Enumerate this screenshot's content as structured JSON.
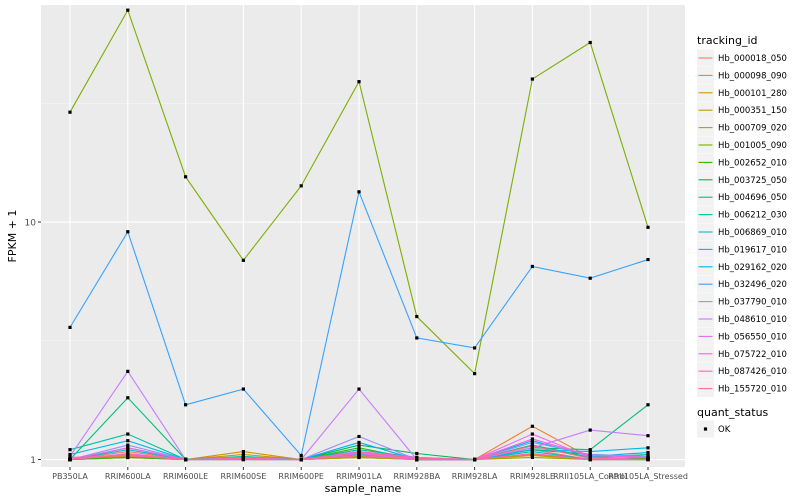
{
  "chart_data": {
    "type": "line",
    "xlabel": "sample_name",
    "ylabel": "FPKM + 1",
    "y_scale": "log10",
    "ylim": [
      0.93,
      82
    ],
    "y_ticks": [
      1,
      10
    ],
    "y_tick_labels": [
      "1",
      "10"
    ],
    "grid": true,
    "legend_position": "right",
    "categories": [
      "PB350LA",
      "RRIM600LA",
      "RRIM600LE",
      "RRIM600SE",
      "RRIM600PE",
      "RRIM901LA",
      "RRIM928BA",
      "RRIM928LA",
      "RRIM928LE",
      "RRII105LA_Control",
      "RRII105LA_Stressed"
    ],
    "category_labels": [
      "PB350LA",
      "RRIM600LA",
      "RRIM600LE",
      "RRIM600SE",
      "RRIM600PE",
      "RRIM901LA",
      "RRIM928BA",
      "RRIM928LA",
      "RRIM928LE",
      "RRII105LA_Control",
      "RRII105LA_Stressed"
    ],
    "legend_title": "tracking_id",
    "series": [
      {
        "name": "Hb_000018_050",
        "color": "#F8766D",
        "values": [
          1.0,
          1.08,
          1.0,
          1.02,
          1.0,
          1.05,
          1.0,
          1.0,
          1.1,
          1.0,
          1.02
        ]
      },
      {
        "name": "Hb_000098_090",
        "color": "#EA8331",
        "values": [
          1.0,
          1.03,
          1.0,
          1.01,
          1.0,
          1.03,
          1.0,
          1.0,
          1.38,
          1.02,
          1.01
        ]
      },
      {
        "name": "Hb_000101_280",
        "color": "#D89000",
        "values": [
          1.0,
          1.02,
          1.0,
          1.08,
          1.0,
          1.02,
          1.0,
          1.0,
          1.05,
          1.0,
          1.0
        ]
      },
      {
        "name": "Hb_000351_150",
        "color": "#C09B00",
        "values": [
          1.0,
          1.04,
          1.0,
          1.05,
          1.0,
          1.03,
          1.0,
          1.0,
          1.04,
          1.0,
          1.01
        ]
      },
      {
        "name": "Hb_000709_020",
        "color": "#A3A500",
        "values": [
          1.0,
          1.02,
          1.0,
          1.0,
          1.0,
          1.02,
          1.0,
          1.0,
          1.02,
          1.0,
          1.0
        ]
      },
      {
        "name": "Hb_001005_090",
        "color": "#7CAE00",
        "values": [
          29.0,
          78.0,
          15.5,
          6.9,
          14.2,
          39.0,
          4.0,
          2.3,
          40.0,
          57.0,
          9.5
        ]
      },
      {
        "name": "Hb_002652_010",
        "color": "#39B600",
        "values": [
          1.0,
          1.02,
          1.0,
          1.01,
          1.0,
          1.12,
          1.0,
          1.0,
          1.15,
          1.02,
          1.01
        ]
      },
      {
        "name": "Hb_003725_050",
        "color": "#00BB4E",
        "values": [
          1.0,
          1.05,
          1.0,
          1.02,
          1.0,
          1.15,
          1.06,
          1.0,
          1.1,
          1.05,
          1.03
        ]
      },
      {
        "name": "Hb_004696_050",
        "color": "#00BF7D",
        "values": [
          1.0,
          1.82,
          1.0,
          1.01,
          1.0,
          1.08,
          1.0,
          1.0,
          1.12,
          1.1,
          1.7
        ]
      },
      {
        "name": "Hb_006212_030",
        "color": "#00C1A3",
        "values": [
          1.1,
          1.28,
          1.0,
          1.03,
          1.0,
          1.1,
          1.02,
          1.0,
          1.15,
          1.02,
          1.05
        ]
      },
      {
        "name": "Hb_006869_010",
        "color": "#00BFC4",
        "values": [
          1.0,
          1.1,
          1.0,
          1.0,
          1.0,
          1.05,
          1.0,
          1.0,
          1.08,
          1.0,
          1.0
        ]
      },
      {
        "name": "Hb_019617_010",
        "color": "#00BAE0",
        "values": [
          1.05,
          1.2,
          1.0,
          1.02,
          1.0,
          1.08,
          1.01,
          1.0,
          1.1,
          1.08,
          1.12
        ]
      },
      {
        "name": "Hb_029162_020",
        "color": "#00B0F6",
        "values": [
          1.0,
          1.12,
          1.0,
          1.01,
          1.0,
          1.18,
          1.0,
          1.0,
          1.2,
          1.03,
          1.07
        ]
      },
      {
        "name": "Hb_032496_020",
        "color": "#35A2FF",
        "values": [
          3.6,
          9.1,
          1.7,
          1.98,
          1.04,
          13.4,
          3.25,
          2.95,
          6.5,
          5.8,
          6.95
        ]
      },
      {
        "name": "Hb_037790_010",
        "color": "#9590FF",
        "values": [
          1.0,
          1.15,
          1.0,
          1.02,
          1.0,
          1.25,
          1.0,
          1.0,
          1.18,
          1.05,
          1.03
        ]
      },
      {
        "name": "Hb_048610_010",
        "color": "#C77CFF",
        "values": [
          1.03,
          2.35,
          1.0,
          1.01,
          1.0,
          1.98,
          1.0,
          1.0,
          1.12,
          1.33,
          1.26
        ]
      },
      {
        "name": "Hb_056550_010",
        "color": "#E76BF3",
        "values": [
          1.0,
          1.06,
          1.0,
          1.0,
          1.0,
          1.06,
          1.0,
          1.0,
          1.28,
          1.02,
          1.0
        ]
      },
      {
        "name": "Hb_075722_010",
        "color": "#FA62DB",
        "values": [
          1.0,
          1.12,
          1.0,
          1.01,
          1.0,
          1.08,
          1.02,
          1.0,
          1.22,
          1.04,
          1.02
        ]
      },
      {
        "name": "Hb_087426_010",
        "color": "#FF62BC",
        "values": [
          1.02,
          1.04,
          1.0,
          1.0,
          1.0,
          1.04,
          1.0,
          1.0,
          1.06,
          1.0,
          1.0
        ]
      },
      {
        "name": "Hb_155720_010",
        "color": "#FF6C91",
        "values": [
          1.0,
          1.05,
          1.0,
          1.01,
          1.0,
          1.07,
          1.01,
          1.0,
          1.14,
          1.01,
          1.0
        ]
      }
    ],
    "shape_legend": {
      "title": "quant_status",
      "items": [
        {
          "label": "OK"
        }
      ]
    }
  }
}
